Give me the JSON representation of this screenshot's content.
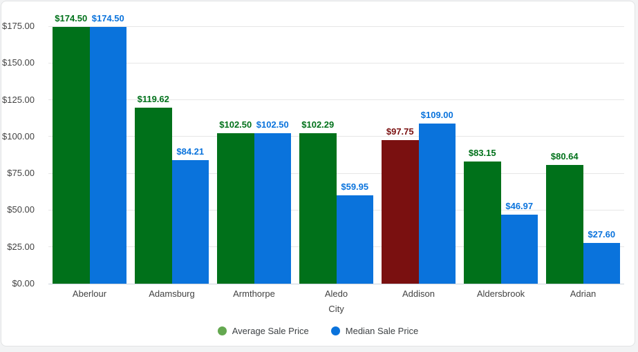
{
  "chart_data": {
    "type": "bar",
    "title": "",
    "xlabel": "City",
    "ylabel": "",
    "ylim": [
      0,
      175
    ],
    "grid": true,
    "legend_position": "bottom",
    "yticks": [
      {
        "value": 0,
        "label": "$0.00"
      },
      {
        "value": 25,
        "label": "$25.00"
      },
      {
        "value": 50,
        "label": "$50.00"
      },
      {
        "value": 75,
        "label": "$75.00"
      },
      {
        "value": 100,
        "label": "$100.00"
      },
      {
        "value": 125,
        "label": "$125.00"
      },
      {
        "value": 150,
        "label": "$150.00"
      },
      {
        "value": 175,
        "label": "$175.00"
      }
    ],
    "categories": [
      "Aberlour",
      "Adamsburg",
      "Armthorpe",
      "Aledo",
      "Addison",
      "Aldersbrook",
      "Adrian"
    ],
    "series": [
      {
        "name": "Average Sale Price",
        "color": "#00711A",
        "legend_color": "#64A850",
        "values": [
          174.5,
          119.62,
          102.5,
          102.29,
          97.75,
          83.15,
          80.64
        ],
        "labels": [
          "$174.50",
          "$119.62",
          "$102.50",
          "$102.29",
          "$97.75",
          "$83.15",
          "$80.64"
        ],
        "bar_colors": [
          "#00711A",
          "#00711A",
          "#00711A",
          "#00711A",
          "#7A1010",
          "#00711A",
          "#00711A"
        ]
      },
      {
        "name": "Median Sale Price",
        "color": "#0A73DC",
        "legend_color": "#0A73DC",
        "values": [
          174.5,
          84.21,
          102.5,
          59.95,
          109.0,
          46.97,
          27.6
        ],
        "labels": [
          "$174.50",
          "$84.21",
          "$102.50",
          "$59.95",
          "$109.00",
          "$46.97",
          "$27.60"
        ],
        "bar_colors": [
          "#0A73DC",
          "#0A73DC",
          "#0A73DC",
          "#0A73DC",
          "#0A73DC",
          "#0A73DC",
          "#0A73DC"
        ]
      }
    ],
    "colors": {
      "grid": "#e6e6e6",
      "baseline": "#ccd3dc",
      "tick_text": "#424242",
      "legend_text": "#3c4043",
      "card_background": "#ffffff",
      "page_background": "#f2f3f4"
    }
  }
}
